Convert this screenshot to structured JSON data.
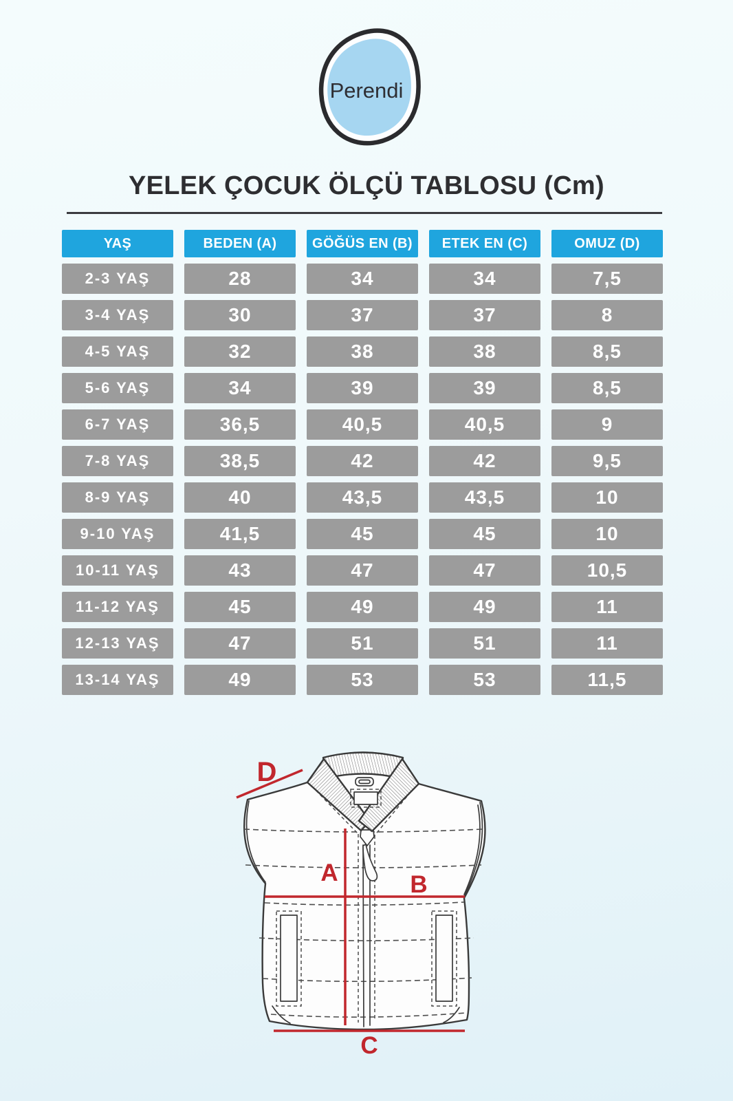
{
  "brand": {
    "logo_text": "Perendi"
  },
  "title": "YELEK ÇOCUK ÖLÇÜ TABLOSU (Cm)",
  "table": {
    "headers": [
      "YAŞ",
      "BEDEN (A)",
      "GÖĞÜS EN (B)",
      "ETEK EN (C)",
      "OMUZ (D)"
    ],
    "rows": [
      [
        "2-3 YAŞ",
        "28",
        "34",
        "34",
        "7,5"
      ],
      [
        "3-4 YAŞ",
        "30",
        "37",
        "37",
        "8"
      ],
      [
        "4-5 YAŞ",
        "32",
        "38",
        "38",
        "8,5"
      ],
      [
        "5-6 YAŞ",
        "34",
        "39",
        "39",
        "8,5"
      ],
      [
        "6-7 YAŞ",
        "36,5",
        "40,5",
        "40,5",
        "9"
      ],
      [
        "7-8 YAŞ",
        "38,5",
        "42",
        "42",
        "9,5"
      ],
      [
        "8-9 YAŞ",
        "40",
        "43,5",
        "43,5",
        "10"
      ],
      [
        "9-10 YAŞ",
        "41,5",
        "45",
        "45",
        "10"
      ],
      [
        "10-11 YAŞ",
        "43",
        "47",
        "47",
        "10,5"
      ],
      [
        "11-12 YAŞ",
        "45",
        "49",
        "49",
        "11"
      ],
      [
        "12-13 YAŞ",
        "47",
        "51",
        "51",
        "11"
      ],
      [
        "13-14 YAŞ",
        "49",
        "53",
        "53",
        "11,5"
      ]
    ]
  },
  "diagram": {
    "labels": {
      "length": "A",
      "chest": "B",
      "hem": "C",
      "shoulder": "D"
    }
  },
  "colors": {
    "header_blue": "#1fa5de",
    "cell_gray": "#9c9c9c",
    "accent_red": "#c1272d",
    "logo_blue": "#a6d6f1",
    "ink": "#2e2e31"
  }
}
